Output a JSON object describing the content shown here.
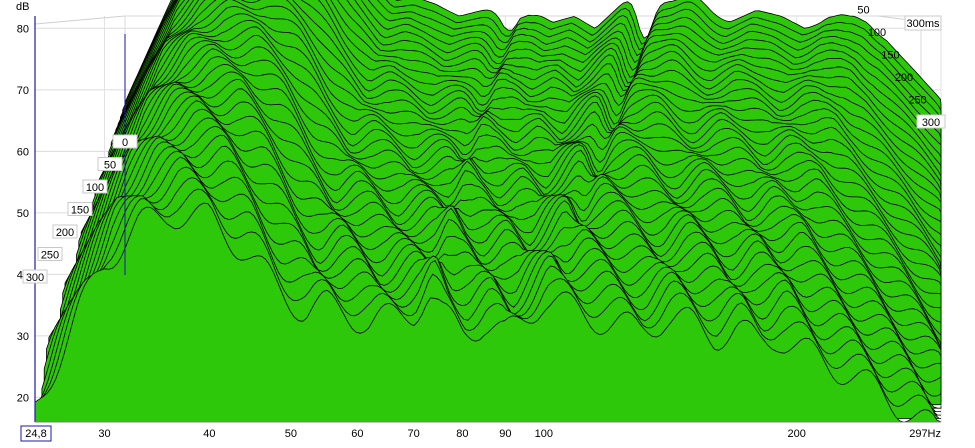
{
  "chart_data": {
    "type": "area",
    "ylabel": "dB",
    "xlabel": "Hz",
    "x_axis_scale": "log",
    "xlim": [
      24.8,
      297
    ],
    "ylim": [
      16,
      82
    ],
    "y_ticks": [
      20,
      30,
      40,
      50,
      60,
      70,
      80
    ],
    "x_ticks": [
      {
        "value": 24.8,
        "label": "24,8"
      },
      {
        "value": 30,
        "label": "30"
      },
      {
        "value": 40,
        "label": "40"
      },
      {
        "value": 50,
        "label": "50"
      },
      {
        "value": 60,
        "label": "60"
      },
      {
        "value": 70,
        "label": "70"
      },
      {
        "value": 80,
        "label": "80"
      },
      {
        "value": 90,
        "label": "90"
      },
      {
        "value": 100,
        "label": "100"
      },
      {
        "value": 200,
        "label": "200"
      },
      {
        "value": 297,
        "label": "297Hz"
      }
    ],
    "time_ticks": [
      {
        "value": 0,
        "label": "0"
      },
      {
        "value": 50,
        "label": "50"
      },
      {
        "value": 100,
        "label": "100"
      },
      {
        "value": 150,
        "label": "150"
      },
      {
        "value": 200,
        "label": "200"
      },
      {
        "value": 250,
        "label": "250"
      },
      {
        "value": 300,
        "label": "300"
      }
    ],
    "time_end_label": "300ms",
    "time_range_ms": [
      0,
      300
    ],
    "slice_count": 40,
    "grid": true,
    "fill_color": "#2ec80a",
    "edge_color": "#000000",
    "spectrum_front": {
      "freq": [
        24.8,
        28,
        30,
        33,
        36,
        40,
        44,
        48,
        52,
        55,
        58,
        62,
        66,
        70,
        73,
        76,
        80,
        85,
        90,
        95,
        100,
        110,
        120,
        130,
        140,
        150,
        160,
        170,
        180,
        190,
        200,
        215,
        230,
        250,
        270,
        297
      ],
      "db": [
        24,
        40,
        48,
        54,
        56,
        55,
        50,
        44,
        40,
        41,
        40,
        38,
        39,
        40,
        43,
        39,
        37,
        38,
        36,
        39,
        42,
        40,
        38,
        37,
        39,
        38,
        36,
        37,
        35,
        36,
        34,
        32,
        30,
        27,
        24,
        20
      ]
    }
  },
  "axis": {
    "y_unit": "dB",
    "cursor_label": "24,8"
  }
}
